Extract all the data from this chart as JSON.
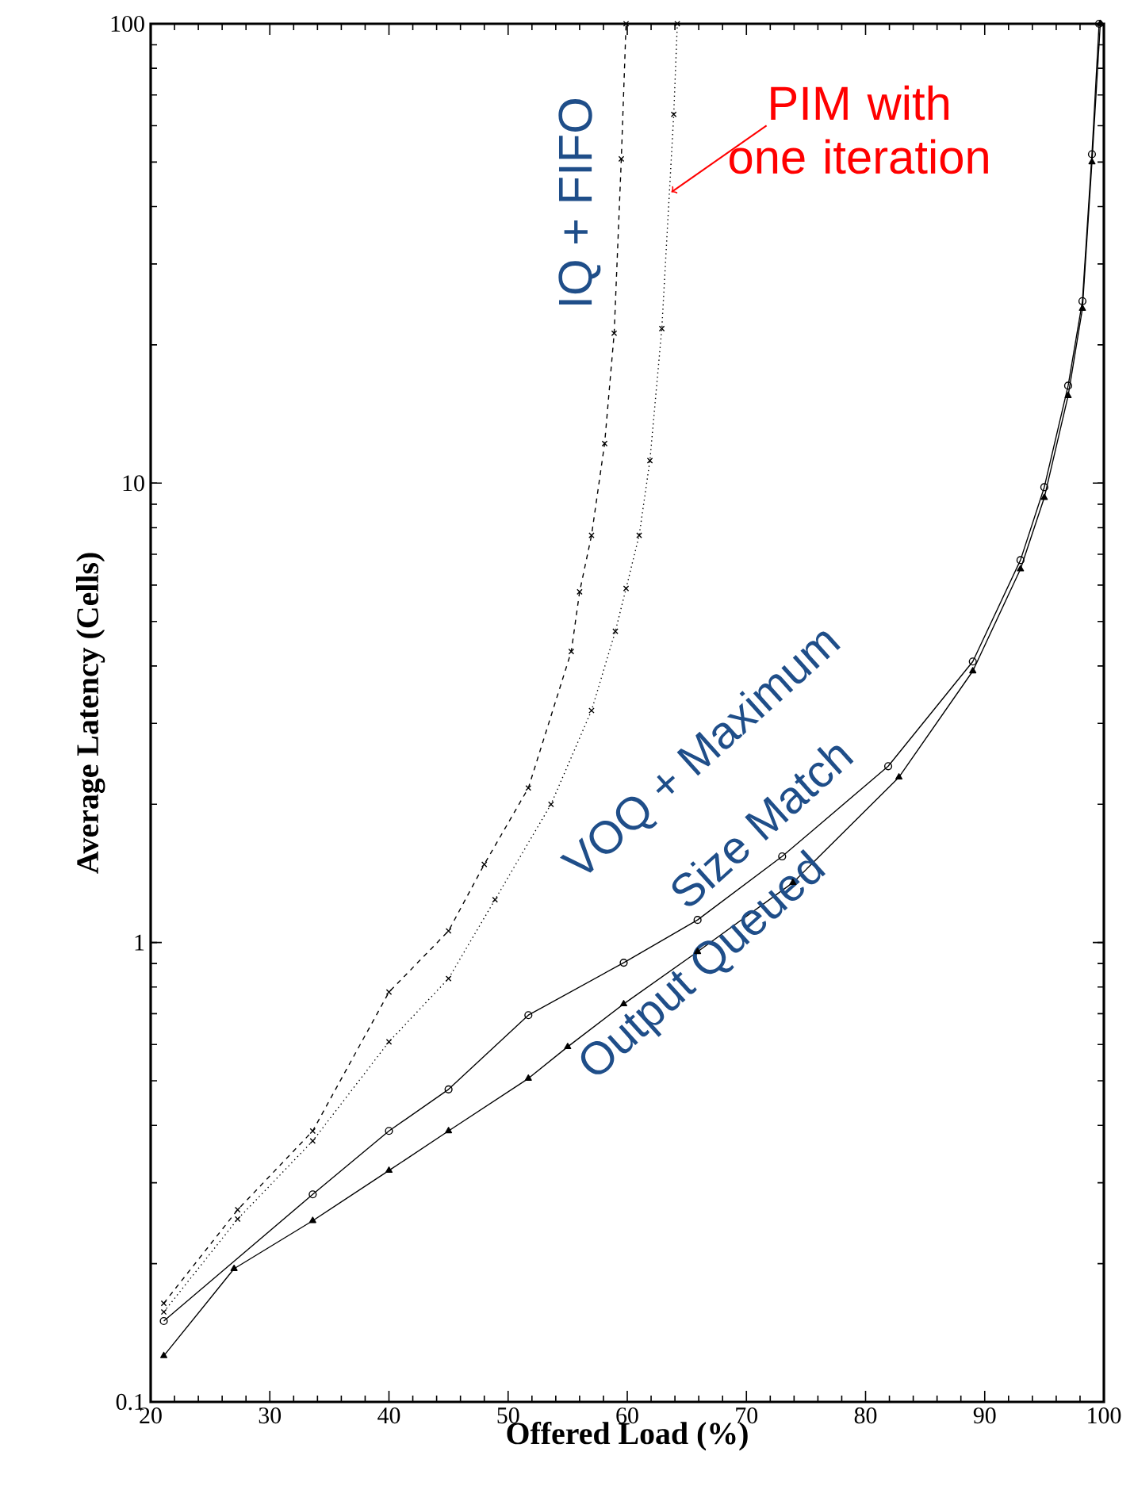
{
  "chart_data": {
    "type": "line",
    "xlabel": "Offered Load (%)",
    "ylabel": "Average Latency (Cells)",
    "log": "y",
    "grid": false,
    "xlim": [
      20,
      100
    ],
    "xticks": [
      20,
      30,
      40,
      50,
      60,
      70,
      80,
      90,
      100
    ],
    "ylim": [
      0.1,
      100
    ],
    "yticks": [
      0.1,
      1,
      10,
      100
    ],
    "series": [
      {
        "color": "#000000",
        "marker": "cross",
        "line_style": "dashed",
        "x": [
          21.1,
          27.3,
          33.6,
          40.0,
          45.0,
          48.0,
          51.7,
          55.3,
          56.0,
          57.0,
          58.1,
          58.9,
          59.5,
          59.9
        ],
        "values": [
          0.164,
          0.262,
          0.389,
          0.78,
          1.06,
          1.48,
          2.17,
          4.3,
          5.8,
          7.7,
          12.2,
          21.2,
          50.8,
          100
        ]
      },
      {
        "color": "#000000",
        "marker": "cross",
        "line_style": "dotted",
        "x": [
          21.1,
          27.3,
          33.6,
          40.0,
          45.0,
          48.9,
          53.6,
          57.0,
          59.0,
          59.9,
          61.0,
          61.9,
          62.9,
          63.9,
          64.2
        ],
        "values": [
          0.157,
          0.25,
          0.37,
          0.608,
          0.835,
          1.24,
          2.0,
          3.2,
          4.76,
          5.9,
          7.7,
          11.2,
          21.7,
          63.5,
          100
        ]
      },
      {
        "color": "#000000",
        "marker": "circle",
        "line_style": "solid",
        "x": [
          21.1,
          33.6,
          40.0,
          45.0,
          51.7,
          59.7,
          65.9,
          73.0,
          81.9,
          89.0,
          93.0,
          95.0,
          97.0,
          98.2,
          99.0,
          99.6
        ],
        "values": [
          0.15,
          0.283,
          0.389,
          0.479,
          0.695,
          0.904,
          1.12,
          1.54,
          2.42,
          4.09,
          6.8,
          9.8,
          16.3,
          24.9,
          52,
          100
        ]
      },
      {
        "color": "#000000",
        "marker": "triangle",
        "line_style": "solid",
        "x": [
          21.1,
          27.0,
          33.6,
          40.0,
          45.0,
          51.7,
          55.0,
          59.7,
          65.9,
          73.9,
          82.8,
          89.0,
          93.0,
          95.0,
          97.0,
          98.2,
          99.0,
          99.7
        ],
        "values": [
          0.126,
          0.195,
          0.248,
          0.319,
          0.389,
          0.506,
          0.593,
          0.735,
          0.955,
          1.35,
          2.29,
          3.9,
          6.5,
          9.3,
          15.5,
          24,
          50,
          100
        ]
      }
    ],
    "annotations": [
      "IQ + FIFO",
      {
        "text": "PIM with one iteration",
        "x": 63.7,
        "y": 43
      },
      "VOQ + Maximum",
      "Size Match",
      "Output Queued"
    ]
  }
}
